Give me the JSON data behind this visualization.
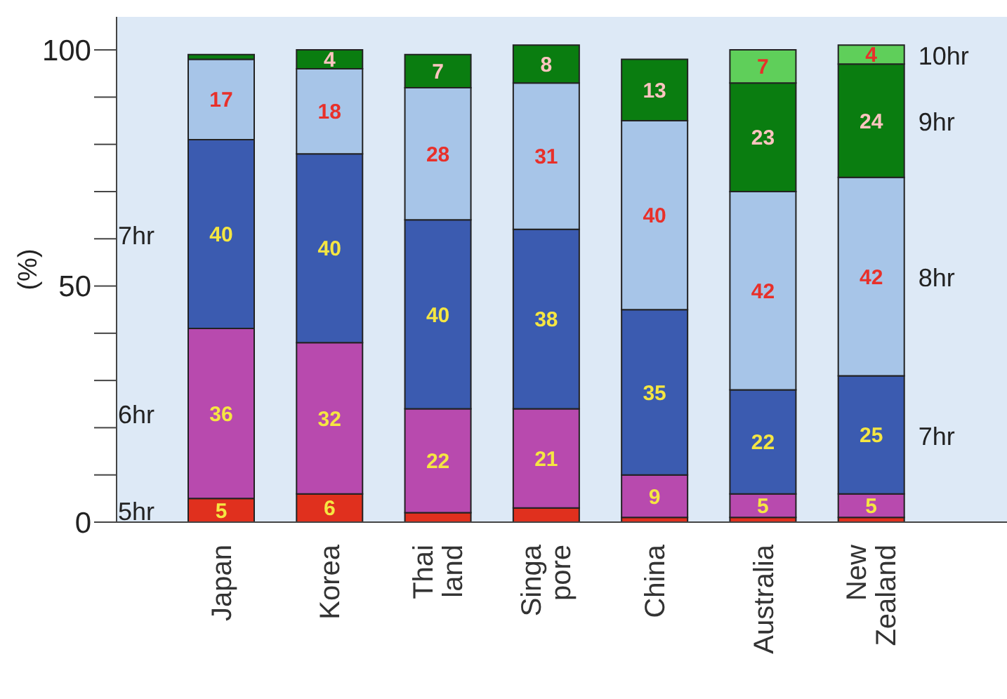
{
  "chart_data": {
    "type": "bar",
    "stacked": true,
    "ylabel": "(%)",
    "categories": [
      "Japan",
      "Korea",
      "Thai land",
      "Singa pore",
      "China",
      "Australia",
      "New Zealand"
    ],
    "series": [
      {
        "name": "5hr",
        "color": "#e0301e",
        "values": [
          5,
          6,
          2,
          3,
          1,
          1,
          1
        ],
        "value_labels": [
          "5",
          "6",
          null,
          null,
          null,
          null,
          null
        ]
      },
      {
        "name": "6hr",
        "color": "#b84aae",
        "values": [
          36,
          32,
          22,
          21,
          9,
          5,
          5
        ],
        "value_labels": [
          "36",
          "32",
          "22",
          "21",
          "9",
          "5",
          "5"
        ]
      },
      {
        "name": "7hr",
        "color": "#3b5bb0",
        "values": [
          40,
          40,
          40,
          38,
          35,
          22,
          25
        ],
        "value_labels": [
          "40",
          "40",
          "40",
          "38",
          "35",
          "22",
          "25"
        ]
      },
      {
        "name": "8hr",
        "color": "#a7c5e8",
        "values": [
          17,
          18,
          28,
          31,
          40,
          42,
          42
        ],
        "value_labels": [
          "17",
          "18",
          "28",
          "31",
          "40",
          "42",
          "42"
        ]
      },
      {
        "name": "9hr",
        "color": "#0a7d10",
        "values": [
          1,
          4,
          7,
          8,
          13,
          23,
          24
        ],
        "value_labels": [
          null,
          "4",
          "7",
          "8",
          "13",
          "23",
          "24"
        ]
      },
      {
        "name": "10hr",
        "color": "#5fcf5a",
        "values": [
          null,
          null,
          null,
          null,
          null,
          7,
          4
        ],
        "value_labels": [
          null,
          null,
          null,
          null,
          null,
          "7",
          "4"
        ]
      }
    ],
    "ylim": [
      0,
      107
    ],
    "yticks": [
      0,
      {
        "value": 10,
        "label": null
      },
      {
        "value": 20,
        "label": null
      },
      {
        "value": 30,
        "label": null
      },
      {
        "value": 40,
        "label": null
      },
      50,
      {
        "value": 60,
        "label": null
      },
      {
        "value": 70,
        "label": null
      },
      {
        "value": 80,
        "label": null
      },
      {
        "value": 90,
        "label": null
      },
      100
    ],
    "grid": false,
    "legend": false
  }
}
